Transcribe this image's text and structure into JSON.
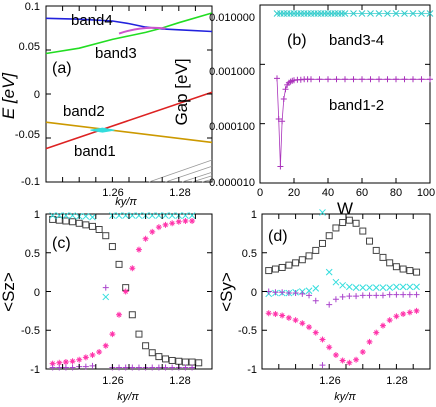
{
  "chart_data": [
    {
      "panel": "a",
      "type": "line",
      "ylabel": "E [eV]",
      "xlabel": "ky/π",
      "xlim": [
        1.245,
        1.295
      ],
      "ylim": [
        -0.1,
        0.1
      ],
      "xticks": [
        "1.26",
        "1.28"
      ],
      "yticks": [
        "0.1",
        "0.05",
        "0",
        "-0.05",
        "-0.1"
      ],
      "band_labels": [
        "band4",
        "band3",
        "band2",
        "band1"
      ],
      "series": [
        {
          "color": "#2222dd",
          "x": [
            1.245,
            1.255,
            1.265,
            1.27,
            1.275,
            1.28,
            1.285,
            1.295
          ],
          "y": [
            0.086,
            0.085,
            0.083,
            0.08,
            0.076,
            0.074,
            0.073,
            0.071
          ]
        },
        {
          "color": "#22dd22",
          "x": [
            1.245,
            1.255,
            1.265,
            1.27,
            1.275,
            1.28,
            1.285,
            1.295
          ],
          "y": [
            0.046,
            0.052,
            0.062,
            0.066,
            0.07,
            0.075,
            0.081,
            0.092
          ]
        },
        {
          "color": "#dd2222",
          "x": [
            1.245,
            1.295
          ],
          "y": [
            -0.062,
            0.002
          ]
        },
        {
          "color": "#cc9900",
          "x": [
            1.245,
            1.295
          ],
          "y": [
            -0.032,
            -0.055
          ]
        },
        {
          "color": "#999999",
          "x": [
            1.276,
            1.295
          ],
          "y": [
            -0.1,
            -0.075
          ]
        },
        {
          "color": "#999999",
          "x": [
            1.281,
            1.295
          ],
          "y": [
            -0.1,
            -0.082
          ]
        },
        {
          "color": "#999999",
          "x": [
            1.286,
            1.295
          ],
          "y": [
            -0.1,
            -0.089
          ]
        },
        {
          "color": "#999999",
          "x": [
            1.289,
            1.295
          ],
          "y": [
            -0.1,
            -0.093
          ]
        },
        {
          "color": "#999999",
          "x": [
            1.292,
            1.295
          ],
          "y": [
            -0.1,
            -0.097
          ]
        }
      ],
      "highlight_colors": [
        "#cc55cc",
        "#33dddd"
      ]
    },
    {
      "panel": "b",
      "type": "scatter",
      "yscale": "log",
      "ylabel": "Gap [eV]",
      "xlabel": "W",
      "xlim": [
        0,
        100
      ],
      "yticks": [
        "0.010000",
        "0.001000",
        "0.000100",
        "0.000010"
      ],
      "xticks": [
        "0",
        "20",
        "40",
        "60",
        "80",
        "100"
      ],
      "labels": [
        "band3-4",
        "band1-2"
      ],
      "series": [
        {
          "color": "#33cccc",
          "marker": "x",
          "x": [
            10,
            12,
            14,
            16,
            18,
            20,
            22,
            24,
            26,
            28,
            30,
            32,
            34,
            36,
            38,
            40,
            42,
            44,
            46,
            48,
            50,
            55,
            60,
            65,
            70,
            75,
            80,
            85,
            90,
            95,
            100
          ],
          "y": [
            0.0072,
            0.0072,
            0.0072,
            0.0072,
            0.0072,
            0.0072,
            0.0072,
            0.0072,
            0.0072,
            0.0072,
            0.0072,
            0.0072,
            0.0072,
            0.0072,
            0.0072,
            0.0072,
            0.0072,
            0.0072,
            0.0072,
            0.0072,
            0.0072,
            0.0072,
            0.0072,
            0.0072,
            0.0072,
            0.0072,
            0.0072,
            0.0072,
            0.0072,
            0.0072,
            0.0072
          ]
        },
        {
          "color": "#aa33bb",
          "marker": "+",
          "x": [
            10,
            11,
            12,
            13,
            14,
            15,
            16,
            17,
            18,
            19,
            20,
            22,
            24,
            26,
            28,
            30,
            35,
            40,
            45,
            50,
            55,
            60,
            65,
            70,
            75,
            80,
            85,
            90,
            95,
            100
          ],
          "y": [
            0.00058,
            0.00012,
            1.9e-05,
            0.00011,
            0.00026,
            0.00038,
            0.00045,
            0.00049,
            0.00051,
            0.00053,
            0.00054,
            0.00055,
            0.00055,
            0.00056,
            0.00056,
            0.00056,
            0.00056,
            0.00056,
            0.00056,
            0.00056,
            0.00056,
            0.00056,
            0.00056,
            0.00056,
            0.00056,
            0.00056,
            0.00056,
            0.00056,
            0.00056,
            0.00056
          ]
        }
      ]
    },
    {
      "panel": "c",
      "type": "scatter",
      "ylabel": "<Sz>",
      "xlabel": "ky/π",
      "xlim": [
        1.245,
        1.295
      ],
      "ylim": [
        -1,
        1
      ],
      "xticks": [
        "1.26",
        "1.28"
      ],
      "yticks": [
        "1",
        "0.5",
        "0",
        "-0.5",
        "-1"
      ],
      "series": [
        {
          "color": "#444444",
          "marker": "square",
          "x": [
            1.247,
            1.249,
            1.251,
            1.253,
            1.255,
            1.257,
            1.259,
            1.261,
            1.263,
            1.265,
            1.267,
            1.269,
            1.271,
            1.273,
            1.275,
            1.277,
            1.279,
            1.281,
            1.283,
            1.285,
            1.287,
            1.289,
            1.291
          ],
          "y": [
            0.93,
            0.92,
            0.91,
            0.9,
            0.88,
            0.86,
            0.84,
            0.8,
            0.72,
            0.58,
            0.35,
            0.05,
            -0.3,
            -0.55,
            -0.7,
            -0.79,
            -0.84,
            -0.87,
            -0.89,
            -0.9,
            -0.91,
            -0.91,
            -0.92
          ]
        },
        {
          "color": "#ff33aa",
          "marker": "star",
          "x": [
            1.247,
            1.249,
            1.251,
            1.253,
            1.255,
            1.257,
            1.259,
            1.261,
            1.263,
            1.265,
            1.267,
            1.269,
            1.271,
            1.273,
            1.275,
            1.277,
            1.279,
            1.281,
            1.283,
            1.285,
            1.287,
            1.289
          ],
          "y": [
            -0.93,
            -0.92,
            -0.91,
            -0.9,
            -0.88,
            -0.85,
            -0.82,
            -0.78,
            -0.7,
            -0.55,
            -0.3,
            0.0,
            0.3,
            0.54,
            0.68,
            0.77,
            0.83,
            0.86,
            0.88,
            0.9,
            0.91,
            0.91
          ]
        },
        {
          "color": "#33dddd",
          "marker": "x",
          "x": [
            1.247,
            1.249,
            1.251,
            1.253,
            1.255,
            1.257,
            1.259,
            1.263,
            1.265,
            1.267,
            1.269,
            1.271,
            1.273,
            1.275,
            1.277,
            1.279,
            1.281,
            1.283,
            1.285,
            1.287,
            1.289
          ],
          "y": [
            0.98,
            0.98,
            0.98,
            0.98,
            0.97,
            0.97,
            0.96,
            -0.07,
            0.98,
            0.98,
            0.98,
            0.98,
            0.98,
            0.98,
            0.98,
            0.98,
            0.98,
            0.98,
            0.98,
            0.98,
            0.98
          ]
        },
        {
          "color": "#aa44cc",
          "marker": "+",
          "x": [
            1.247,
            1.249,
            1.251,
            1.253,
            1.255,
            1.257,
            1.259,
            1.263,
            1.265,
            1.267,
            1.269,
            1.271,
            1.273,
            1.275,
            1.277,
            1.279,
            1.281,
            1.283,
            1.285,
            1.287,
            1.289
          ],
          "y": [
            -0.98,
            -0.98,
            -0.98,
            -0.98,
            -0.97,
            -0.97,
            -0.96,
            0.05,
            -0.98,
            -0.98,
            -0.98,
            -0.98,
            -0.98,
            -0.98,
            -0.98,
            -0.98,
            -0.98,
            -0.98,
            -0.98,
            -0.98,
            -0.98
          ]
        }
      ]
    },
    {
      "panel": "d",
      "type": "scatter",
      "ylabel": "<Sy>",
      "xlabel": "ky/π",
      "xlim": [
        1.245,
        1.295
      ],
      "ylim": [
        -1,
        1
      ],
      "xticks": [
        "1.26",
        "1.28"
      ],
      "yticks": [
        "1",
        "0.5",
        "0",
        "-0.5",
        "-1"
      ],
      "series": [
        {
          "color": "#444444",
          "marker": "square",
          "x": [
            1.247,
            1.249,
            1.251,
            1.253,
            1.255,
            1.257,
            1.259,
            1.261,
            1.263,
            1.265,
            1.267,
            1.269,
            1.271,
            1.273,
            1.275,
            1.277,
            1.279,
            1.281,
            1.283,
            1.285,
            1.287,
            1.289,
            1.291
          ],
          "y": [
            0.27,
            0.29,
            0.31,
            0.34,
            0.37,
            0.41,
            0.46,
            0.53,
            0.62,
            0.72,
            0.82,
            0.89,
            0.92,
            0.88,
            0.78,
            0.65,
            0.53,
            0.44,
            0.37,
            0.32,
            0.29,
            0.27,
            0.25
          ]
        },
        {
          "color": "#ff33aa",
          "marker": "star",
          "x": [
            1.247,
            1.249,
            1.251,
            1.253,
            1.255,
            1.257,
            1.259,
            1.261,
            1.263,
            1.265,
            1.267,
            1.269,
            1.271,
            1.273,
            1.275,
            1.277,
            1.279,
            1.281,
            1.283,
            1.285,
            1.287,
            1.289,
            1.291
          ],
          "y": [
            -0.28,
            -0.29,
            -0.31,
            -0.34,
            -0.37,
            -0.41,
            -0.46,
            -0.53,
            -0.62,
            -0.72,
            -0.82,
            -0.89,
            -0.92,
            -0.88,
            -0.78,
            -0.65,
            -0.53,
            -0.44,
            -0.37,
            -0.32,
            -0.29,
            -0.27,
            -0.25
          ]
        },
        {
          "color": "#33dddd",
          "marker": "x",
          "x": [
            1.247,
            1.249,
            1.251,
            1.253,
            1.255,
            1.257,
            1.259,
            1.261,
            1.263,
            1.265,
            1.267,
            1.269,
            1.271,
            1.273,
            1.275,
            1.277,
            1.279,
            1.281,
            1.283,
            1.285,
            1.287,
            1.289,
            1.291
          ],
          "y": [
            -0.03,
            -0.02,
            -0.02,
            -0.02,
            -0.01,
            0.0,
            0.01,
            0.04,
            1.02,
            0.25,
            0.12,
            0.08,
            0.06,
            0.05,
            0.05,
            0.05,
            0.05,
            0.05,
            0.05,
            0.06,
            0.06,
            0.06,
            0.06
          ]
        },
        {
          "color": "#aa44cc",
          "marker": "+",
          "x": [
            1.247,
            1.249,
            1.251,
            1.253,
            1.255,
            1.257,
            1.259,
            1.261,
            1.263,
            1.265,
            1.267,
            1.269,
            1.271,
            1.273,
            1.275,
            1.277,
            1.279,
            1.281,
            1.283,
            1.285,
            1.287,
            1.289,
            1.291
          ],
          "y": [
            0.0,
            -0.01,
            -0.01,
            -0.02,
            -0.02,
            -0.03,
            -0.05,
            -0.12,
            -0.95,
            -0.17,
            -0.1,
            -0.07,
            -0.06,
            -0.06,
            -0.05,
            -0.05,
            -0.05,
            -0.05,
            -0.04,
            -0.04,
            -0.04,
            -0.04,
            -0.04
          ]
        }
      ]
    }
  ]
}
